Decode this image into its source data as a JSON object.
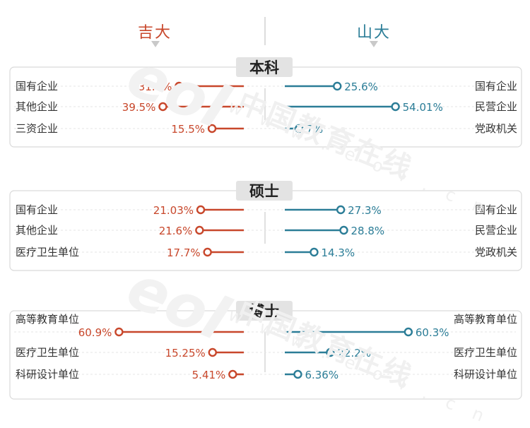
{
  "colors": {
    "left": "#c8472b",
    "right": "#2b7d97",
    "box_border": "#d9d9d9",
    "header_bg": "#e3e3e3"
  },
  "watermark": {
    "text": "中国教育在线",
    "sub": "w w w . e o l . c n",
    "logo": "eol"
  },
  "chart_data": {
    "type": "bar",
    "left_title": "吉大",
    "right_title": "山大",
    "sections": [
      {
        "title": "本科",
        "rows": [
          {
            "left_label": "国有企业",
            "left_value": 31.6,
            "left_text": "31.6%",
            "right_label": "国有企业",
            "right_value": 25.6,
            "right_text": "25.6%"
          },
          {
            "left_label": "其他企业",
            "left_value": 39.5,
            "left_text": "39.5%",
            "right_label": "民营企业",
            "right_value": 54.01,
            "right_text": "54.01%"
          },
          {
            "left_label": "三资企业",
            "left_value": 15.5,
            "left_text": "15.5%",
            "right_label": "党政机关",
            "right_value": 7,
            "right_text": "7%"
          }
        ]
      },
      {
        "title": "硕士",
        "rows": [
          {
            "left_label": "国有企业",
            "left_value": 21.03,
            "left_text": "21.03%",
            "right_label": "国有企业",
            "right_value": 27.3,
            "right_text": "27.3%"
          },
          {
            "left_label": "其他企业",
            "left_value": 21.6,
            "left_text": "21.6%",
            "right_label": "民营企业",
            "right_value": 28.8,
            "right_text": "28.8%"
          },
          {
            "left_label": "医疗卫生单位",
            "left_value": 17.7,
            "left_text": "17.7%",
            "right_label": "党政机关",
            "right_value": 14.3,
            "right_text": "14.3%"
          }
        ]
      },
      {
        "title": "博士",
        "rows": [
          {
            "left_label": "高等教育单位",
            "left_value": 60.9,
            "left_text": "60.9%",
            "right_label": "高等教育单位",
            "right_value": 60.3,
            "right_text": "60.3%"
          },
          {
            "left_label": "医疗卫生单位",
            "left_value": 15.25,
            "left_text": "15.25%",
            "right_label": "医疗卫生单位",
            "right_value": 22.2,
            "right_text": "22.2%"
          },
          {
            "left_label": "科研设计单位",
            "left_value": 5.41,
            "left_text": "5.41%",
            "right_label": "科研设计单位",
            "right_value": 6.36,
            "right_text": "6.36%"
          }
        ]
      }
    ]
  }
}
